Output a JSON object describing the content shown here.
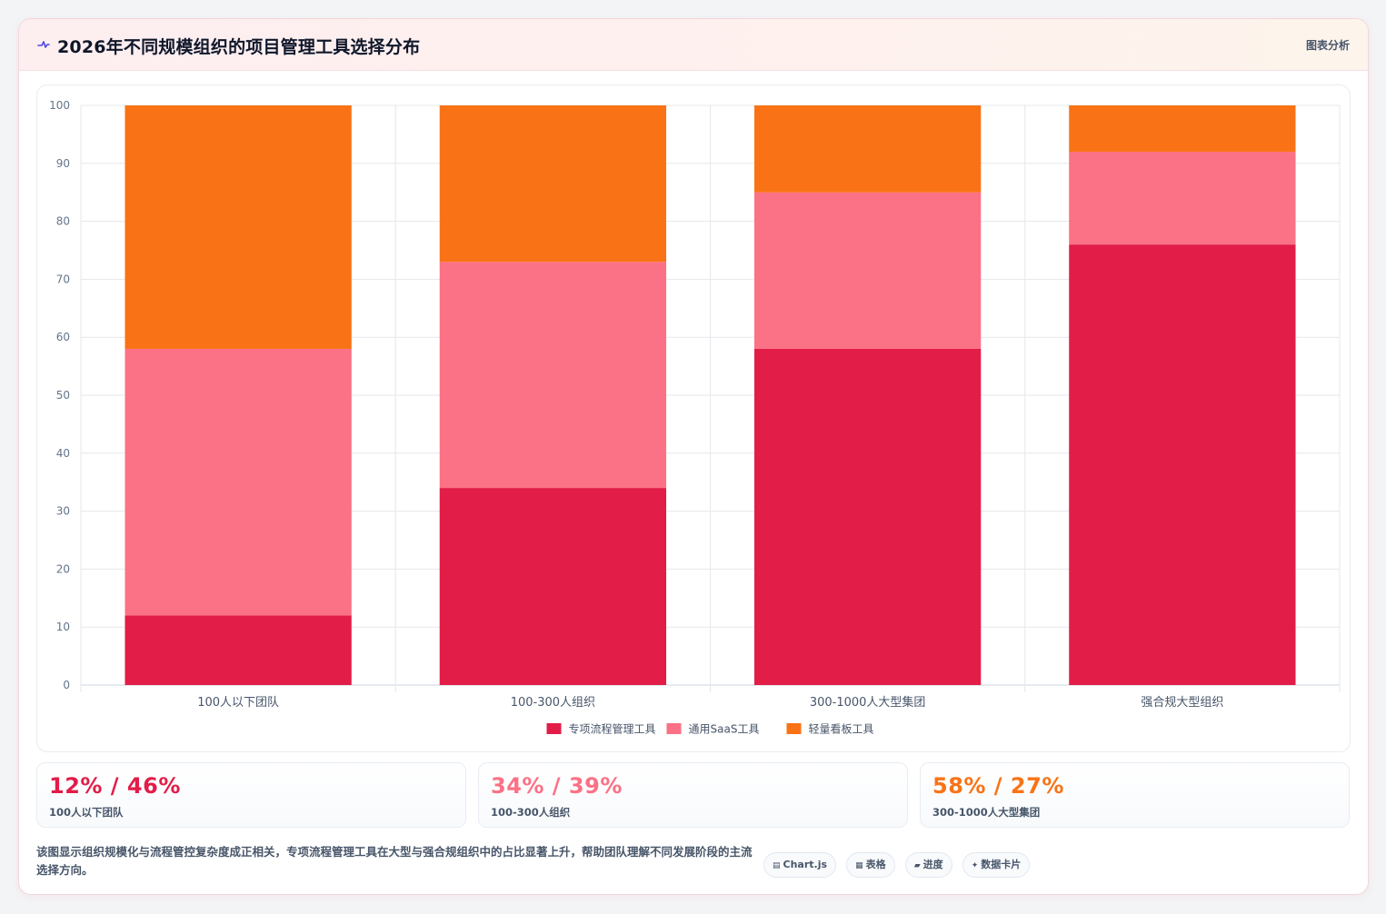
{
  "header": {
    "title": "2026年不同规模组织的项目管理工具选择分布",
    "tag": "图表分析"
  },
  "colors": {
    "accent": "#e11d48",
    "series1": "#e11d48",
    "series2": "#fb7185",
    "series3": "#f97316"
  },
  "chart_data": {
    "type": "bar",
    "stacked": true,
    "categories": [
      "100人以下团队",
      "100-300人组织",
      "300-1000人大型集团",
      "强合规大型组织"
    ],
    "series": [
      {
        "name": "专项流程管理工具",
        "values": [
          12,
          34,
          58,
          76
        ],
        "color": "#e11d48"
      },
      {
        "name": "通用SaaS工具",
        "values": [
          46,
          39,
          27,
          16
        ],
        "color": "#fb7185"
      },
      {
        "name": "轻量看板工具",
        "values": [
          42,
          27,
          15,
          8
        ],
        "color": "#f97316"
      }
    ],
    "ylim": [
      0,
      100
    ],
    "yticks": [
      0,
      10,
      20,
      30,
      40,
      50,
      60,
      70,
      80,
      90,
      100
    ],
    "grid": true,
    "legend_position": "bottom"
  },
  "stats": [
    {
      "value": "12% / 46%",
      "label": "100人以下团队",
      "color": "#e11d48"
    },
    {
      "value": "34% / 39%",
      "label": "100-300人组织",
      "color": "#fb7185"
    },
    {
      "value": "58% / 27%",
      "label": "300-1000人大型集团",
      "color": "#f97316"
    }
  ],
  "footer": {
    "description": "该图显示组织规模化与流程管控复杂度成正相关，专项流程管理工具在大型与强合规组织中的占比显著上升，帮助团队理解不同发展阶段的主流选择方向。",
    "chips": [
      {
        "label": "Chart.js",
        "icon": "▤"
      },
      {
        "label": "表格",
        "icon": "▦"
      },
      {
        "label": "进度",
        "icon": "▰"
      },
      {
        "label": "数据卡片",
        "icon": "✦"
      }
    ]
  }
}
